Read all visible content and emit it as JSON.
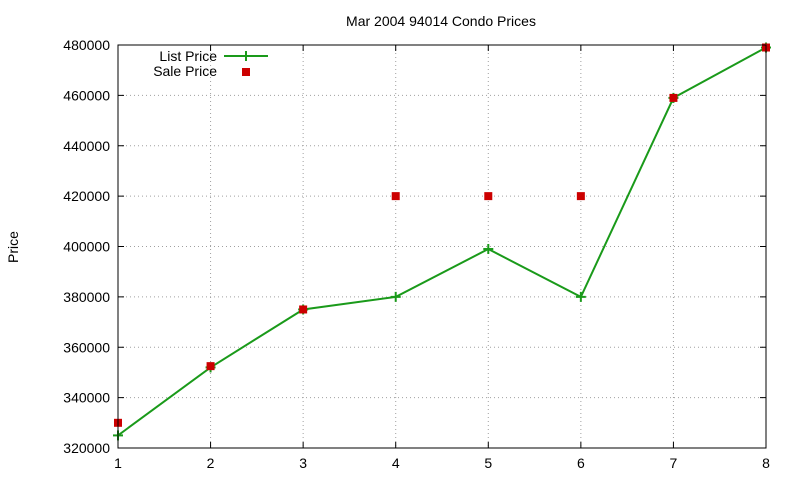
{
  "chart_data": {
    "type": "line",
    "title": "Mar 2004 94014 Condo Prices",
    "xlabel": "",
    "ylabel": "Price",
    "xlim": [
      1,
      8
    ],
    "ylim": [
      320000,
      480000
    ],
    "x_ticks": [
      "1",
      "2",
      "3",
      "4",
      "5",
      "6",
      "7",
      "8"
    ],
    "y_ticks": [
      "320000",
      "340000",
      "360000",
      "380000",
      "400000",
      "420000",
      "440000",
      "460000",
      "480000"
    ],
    "grid": true,
    "legend_position": "top-left",
    "series": [
      {
        "name": "List Price",
        "style": "line-with-plus-markers",
        "color": "#1a9a1a",
        "points": [
          {
            "x": 1,
            "y": 325000
          },
          {
            "x": 2,
            "y": 352000
          },
          {
            "x": 3,
            "y": 375000
          },
          {
            "x": 4,
            "y": 380000
          },
          {
            "x": 5,
            "y": 399000
          },
          {
            "x": 6,
            "y": 380000
          },
          {
            "x": 7,
            "y": 459000
          },
          {
            "x": 8,
            "y": 479000
          }
        ]
      },
      {
        "name": "Sale Price",
        "style": "square-markers",
        "color": "#cc0000",
        "points": [
          {
            "x": 1,
            "y": 330000
          },
          {
            "x": 2,
            "y": 352500
          },
          {
            "x": 3,
            "y": 375000
          },
          {
            "x": 4,
            "y": 420000
          },
          {
            "x": 5,
            "y": 420000
          },
          {
            "x": 6,
            "y": 420000
          },
          {
            "x": 7,
            "y": 459000
          },
          {
            "x": 8,
            "y": 479000
          }
        ]
      }
    ]
  }
}
